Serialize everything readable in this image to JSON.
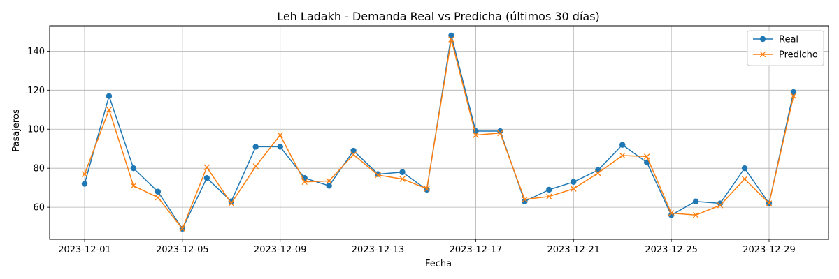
{
  "chart_data": {
    "type": "line",
    "title": "Leh Ladakh - Demanda Real vs Predicha (últimos 30 días)",
    "xlabel": "Fecha",
    "ylabel": "Pasajeros",
    "x": [
      "2023-12-01",
      "2023-12-02",
      "2023-12-03",
      "2023-12-04",
      "2023-12-05",
      "2023-12-06",
      "2023-12-07",
      "2023-12-08",
      "2023-12-09",
      "2023-12-10",
      "2023-12-11",
      "2023-12-12",
      "2023-12-13",
      "2023-12-14",
      "2023-12-15",
      "2023-12-16",
      "2023-12-17",
      "2023-12-18",
      "2023-12-19",
      "2023-12-20",
      "2023-12-21",
      "2023-12-22",
      "2023-12-23",
      "2023-12-24",
      "2023-12-25",
      "2023-12-26",
      "2023-12-27",
      "2023-12-28",
      "2023-12-29",
      "2023-12-30"
    ],
    "x_ticks": [
      "2023-12-01",
      "2023-12-05",
      "2023-12-09",
      "2023-12-13",
      "2023-12-17",
      "2023-12-21",
      "2023-12-25",
      "2023-12-29"
    ],
    "y_ticks": [
      60,
      80,
      100,
      120,
      140
    ],
    "ylim": [
      43.6,
      153
    ],
    "grid": true,
    "legend_position": "top-right",
    "series": [
      {
        "name": "Real",
        "color": "#1f77b4",
        "marker": "circle",
        "values": [
          72,
          117,
          80,
          68,
          49,
          75,
          63,
          91,
          91,
          75,
          71,
          89,
          77,
          78,
          69,
          148,
          99,
          99,
          63,
          69,
          73,
          79,
          92,
          83,
          56,
          63,
          62,
          80,
          62,
          119
        ]
      },
      {
        "name": "Predicho",
        "color": "#ff7f0e",
        "marker": "x",
        "values": [
          77,
          110,
          71,
          65,
          49,
          80.5,
          62,
          81,
          97,
          73,
          73.5,
          87,
          76.5,
          74.5,
          69.5,
          146,
          97,
          98,
          64,
          65.5,
          69.5,
          77.5,
          86.5,
          86,
          57,
          56,
          61,
          74.5,
          62,
          117
        ]
      }
    ]
  }
}
